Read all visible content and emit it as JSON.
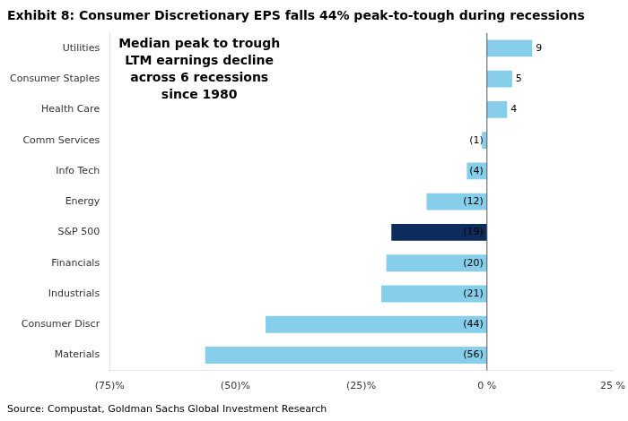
{
  "chart_data": {
    "type": "bar",
    "orientation": "horizontal",
    "title": "Exhibit 8: Consumer Discretionary EPS falls 44% peak-to-tough during recessions",
    "source": "Source: Compustat, Goldman Sachs Global Investment Research",
    "annotation": "Median peak to trough\nLTM earnings decline\nacross 6 recessions\nsince 1980",
    "categories": [
      "Materials",
      "Consumer Discr",
      "Industrials",
      "Financials",
      "S&P 500",
      "Energy",
      "Info Tech",
      "Comm Services",
      "Health Care",
      "Consumer Staples",
      "Utilities"
    ],
    "values": [
      -56,
      -44,
      -21,
      -20,
      -19,
      -12,
      -4,
      -1,
      4,
      5,
      9
    ],
    "value_labels": [
      "(56)",
      "(44)",
      "(21)",
      "(20)",
      "(19)",
      "(12)",
      "(4)",
      "(1)",
      "4",
      "5",
      "9"
    ],
    "colors": [
      "#87ceeb",
      "#87ceeb",
      "#87ceeb",
      "#87ceeb",
      "#0d2d5e",
      "#87ceeb",
      "#87ceeb",
      "#87ceeb",
      "#87ceeb",
      "#87ceeb",
      "#87ceeb"
    ],
    "xlim": [
      -75,
      25
    ],
    "xticks": [
      {
        "value": -75,
        "label": "(75)%"
      },
      {
        "value": -50,
        "label": "(50)%"
      },
      {
        "value": -25,
        "label": "(25)%"
      },
      {
        "value": 0,
        "label": "0 %"
      },
      {
        "value": 25,
        "label": "25 %"
      }
    ],
    "data_labels": true,
    "grid": false
  }
}
